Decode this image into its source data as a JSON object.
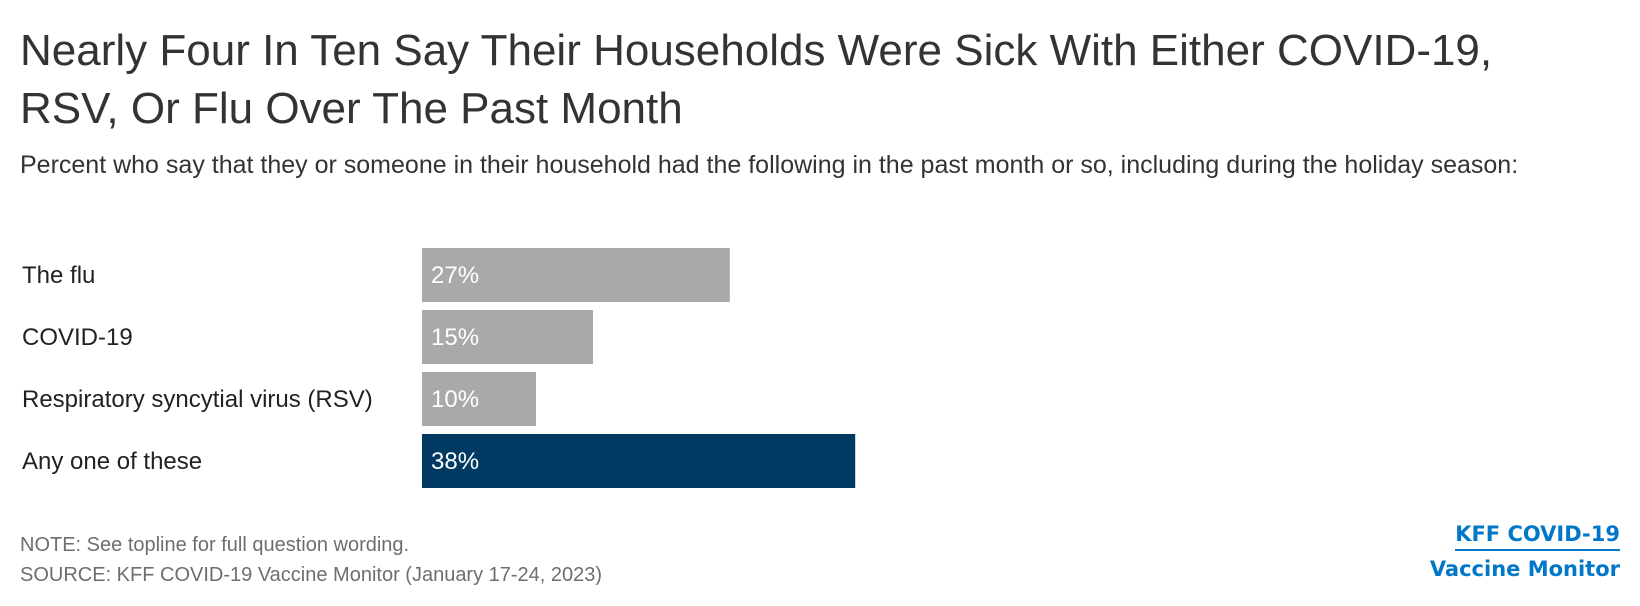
{
  "header": {
    "title": "Nearly Four In Ten Say Their Households Were Sick With Either COVID-19, RSV, Or Flu Over The Past Month",
    "subtitle": "Percent who say that they or someone in their household had the following in the past month or so, including during the holiday season:"
  },
  "chart_data": {
    "type": "bar",
    "orientation": "horizontal",
    "categories": [
      "The flu",
      "COVID-19",
      "Respiratory syncytial virus (RSV)",
      "Any one of these"
    ],
    "values": [
      27,
      15,
      10,
      38
    ],
    "value_labels": [
      "27%",
      "15%",
      "10%",
      "38%"
    ],
    "colors": [
      "#a9a9a9",
      "#a9a9a9",
      "#a9a9a9",
      "#003a63"
    ],
    "xlim": [
      0,
      100
    ],
    "grid": false,
    "legend": "none"
  },
  "footer": {
    "note": "NOTE: See topline for full question wording.",
    "source": "SOURCE: KFF COVID-19 Vaccine Monitor (January 17-24, 2023)"
  },
  "logo": {
    "line1": "KFF COVID-19",
    "line2": "Vaccine Monitor",
    "color": "#0077c8"
  }
}
